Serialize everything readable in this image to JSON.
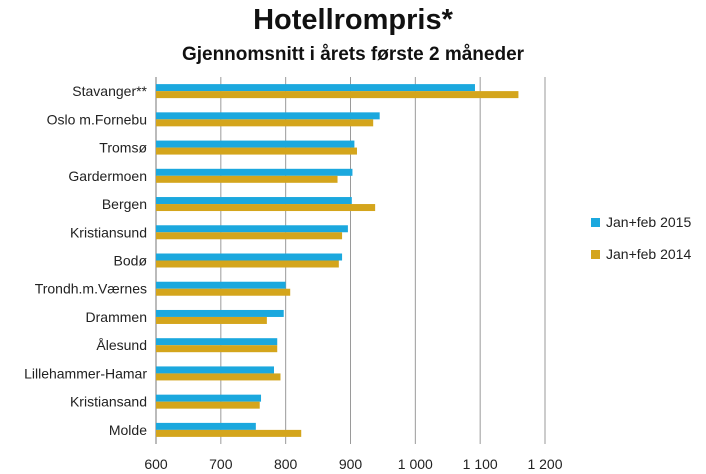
{
  "chart_data": {
    "type": "bar",
    "orientation": "horizontal",
    "title": "Hotellrompris*",
    "subtitle": "Gjennomsnitt i årets første 2 måneder",
    "xlabel": "",
    "ylabel": "",
    "xlim": [
      600,
      1200
    ],
    "x_ticks": [
      600,
      700,
      800,
      900,
      1000,
      1100,
      1200
    ],
    "x_tick_labels": [
      "600",
      "700",
      "800",
      "900",
      "1 000",
      "1 100",
      "1 200"
    ],
    "grid": "vertical",
    "legend_position": "right",
    "categories": [
      "Stavanger**",
      "Oslo m.Fornebu",
      "Tromsø",
      "Gardermoen",
      "Bergen",
      "Kristiansund",
      "Bodø",
      "Trondh.m.Værnes",
      "Drammen",
      "Ålesund",
      "Lillehammer-Hamar",
      "Kristiansand",
      "Molde"
    ],
    "series": [
      {
        "name": "Jan+feb 2015",
        "color": "#1ba8de",
        "values": [
          1092,
          945,
          906,
          903,
          902,
          896,
          887,
          800,
          797,
          787,
          782,
          762,
          754
        ]
      },
      {
        "name": "Jan+feb 2014",
        "color": "#d4a51c",
        "values": [
          1159,
          935,
          910,
          880,
          938,
          887,
          882,
          807,
          771,
          787,
          792,
          760,
          824
        ]
      }
    ]
  }
}
